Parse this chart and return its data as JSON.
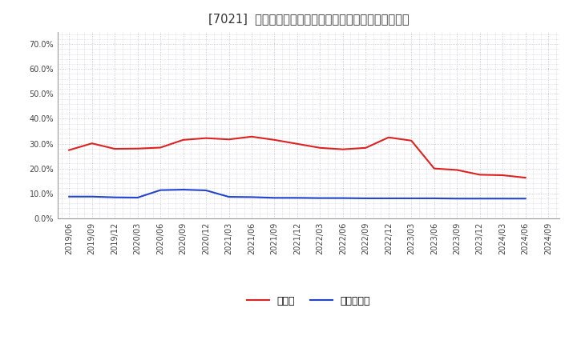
{
  "title": "[7021]  現頲金、有利子負債の総資産に対する比率の推移",
  "legend_cash": "現頲金",
  "legend_debt": "有利子負債",
  "ylim": [
    0.0,
    0.75
  ],
  "yticks": [
    0.0,
    0.1,
    0.2,
    0.3,
    0.4,
    0.5,
    0.6,
    0.7
  ],
  "background_color": "#ffffff",
  "plot_bg_color": "#e8e8f0",
  "grid_color": "#bbbbcc",
  "cash_color": "#dd2222",
  "debt_color": "#2244cc",
  "line_width": 1.5,
  "dates": [
    "2019/06",
    "2019/09",
    "2019/12",
    "2020/03",
    "2020/06",
    "2020/09",
    "2020/12",
    "2021/03",
    "2021/06",
    "2021/09",
    "2021/12",
    "2022/03",
    "2022/06",
    "2022/09",
    "2022/12",
    "2023/03",
    "2023/06",
    "2023/09",
    "2023/12",
    "2024/03",
    "2024/06",
    "2024/09"
  ],
  "cash_ratio": [
    0.274,
    0.301,
    0.279,
    0.28,
    0.284,
    0.315,
    0.322,
    0.317,
    0.328,
    0.315,
    0.299,
    0.283,
    0.277,
    0.283,
    0.325,
    0.312,
    0.2,
    0.194,
    0.175,
    0.173,
    0.163,
    null
  ],
  "debt_ratio": [
    0.087,
    0.087,
    0.084,
    0.083,
    0.113,
    0.115,
    0.112,
    0.086,
    0.085,
    0.082,
    0.082,
    0.081,
    0.081,
    0.08,
    0.08,
    0.08,
    0.08,
    0.079,
    0.079,
    0.079,
    0.079,
    null
  ]
}
